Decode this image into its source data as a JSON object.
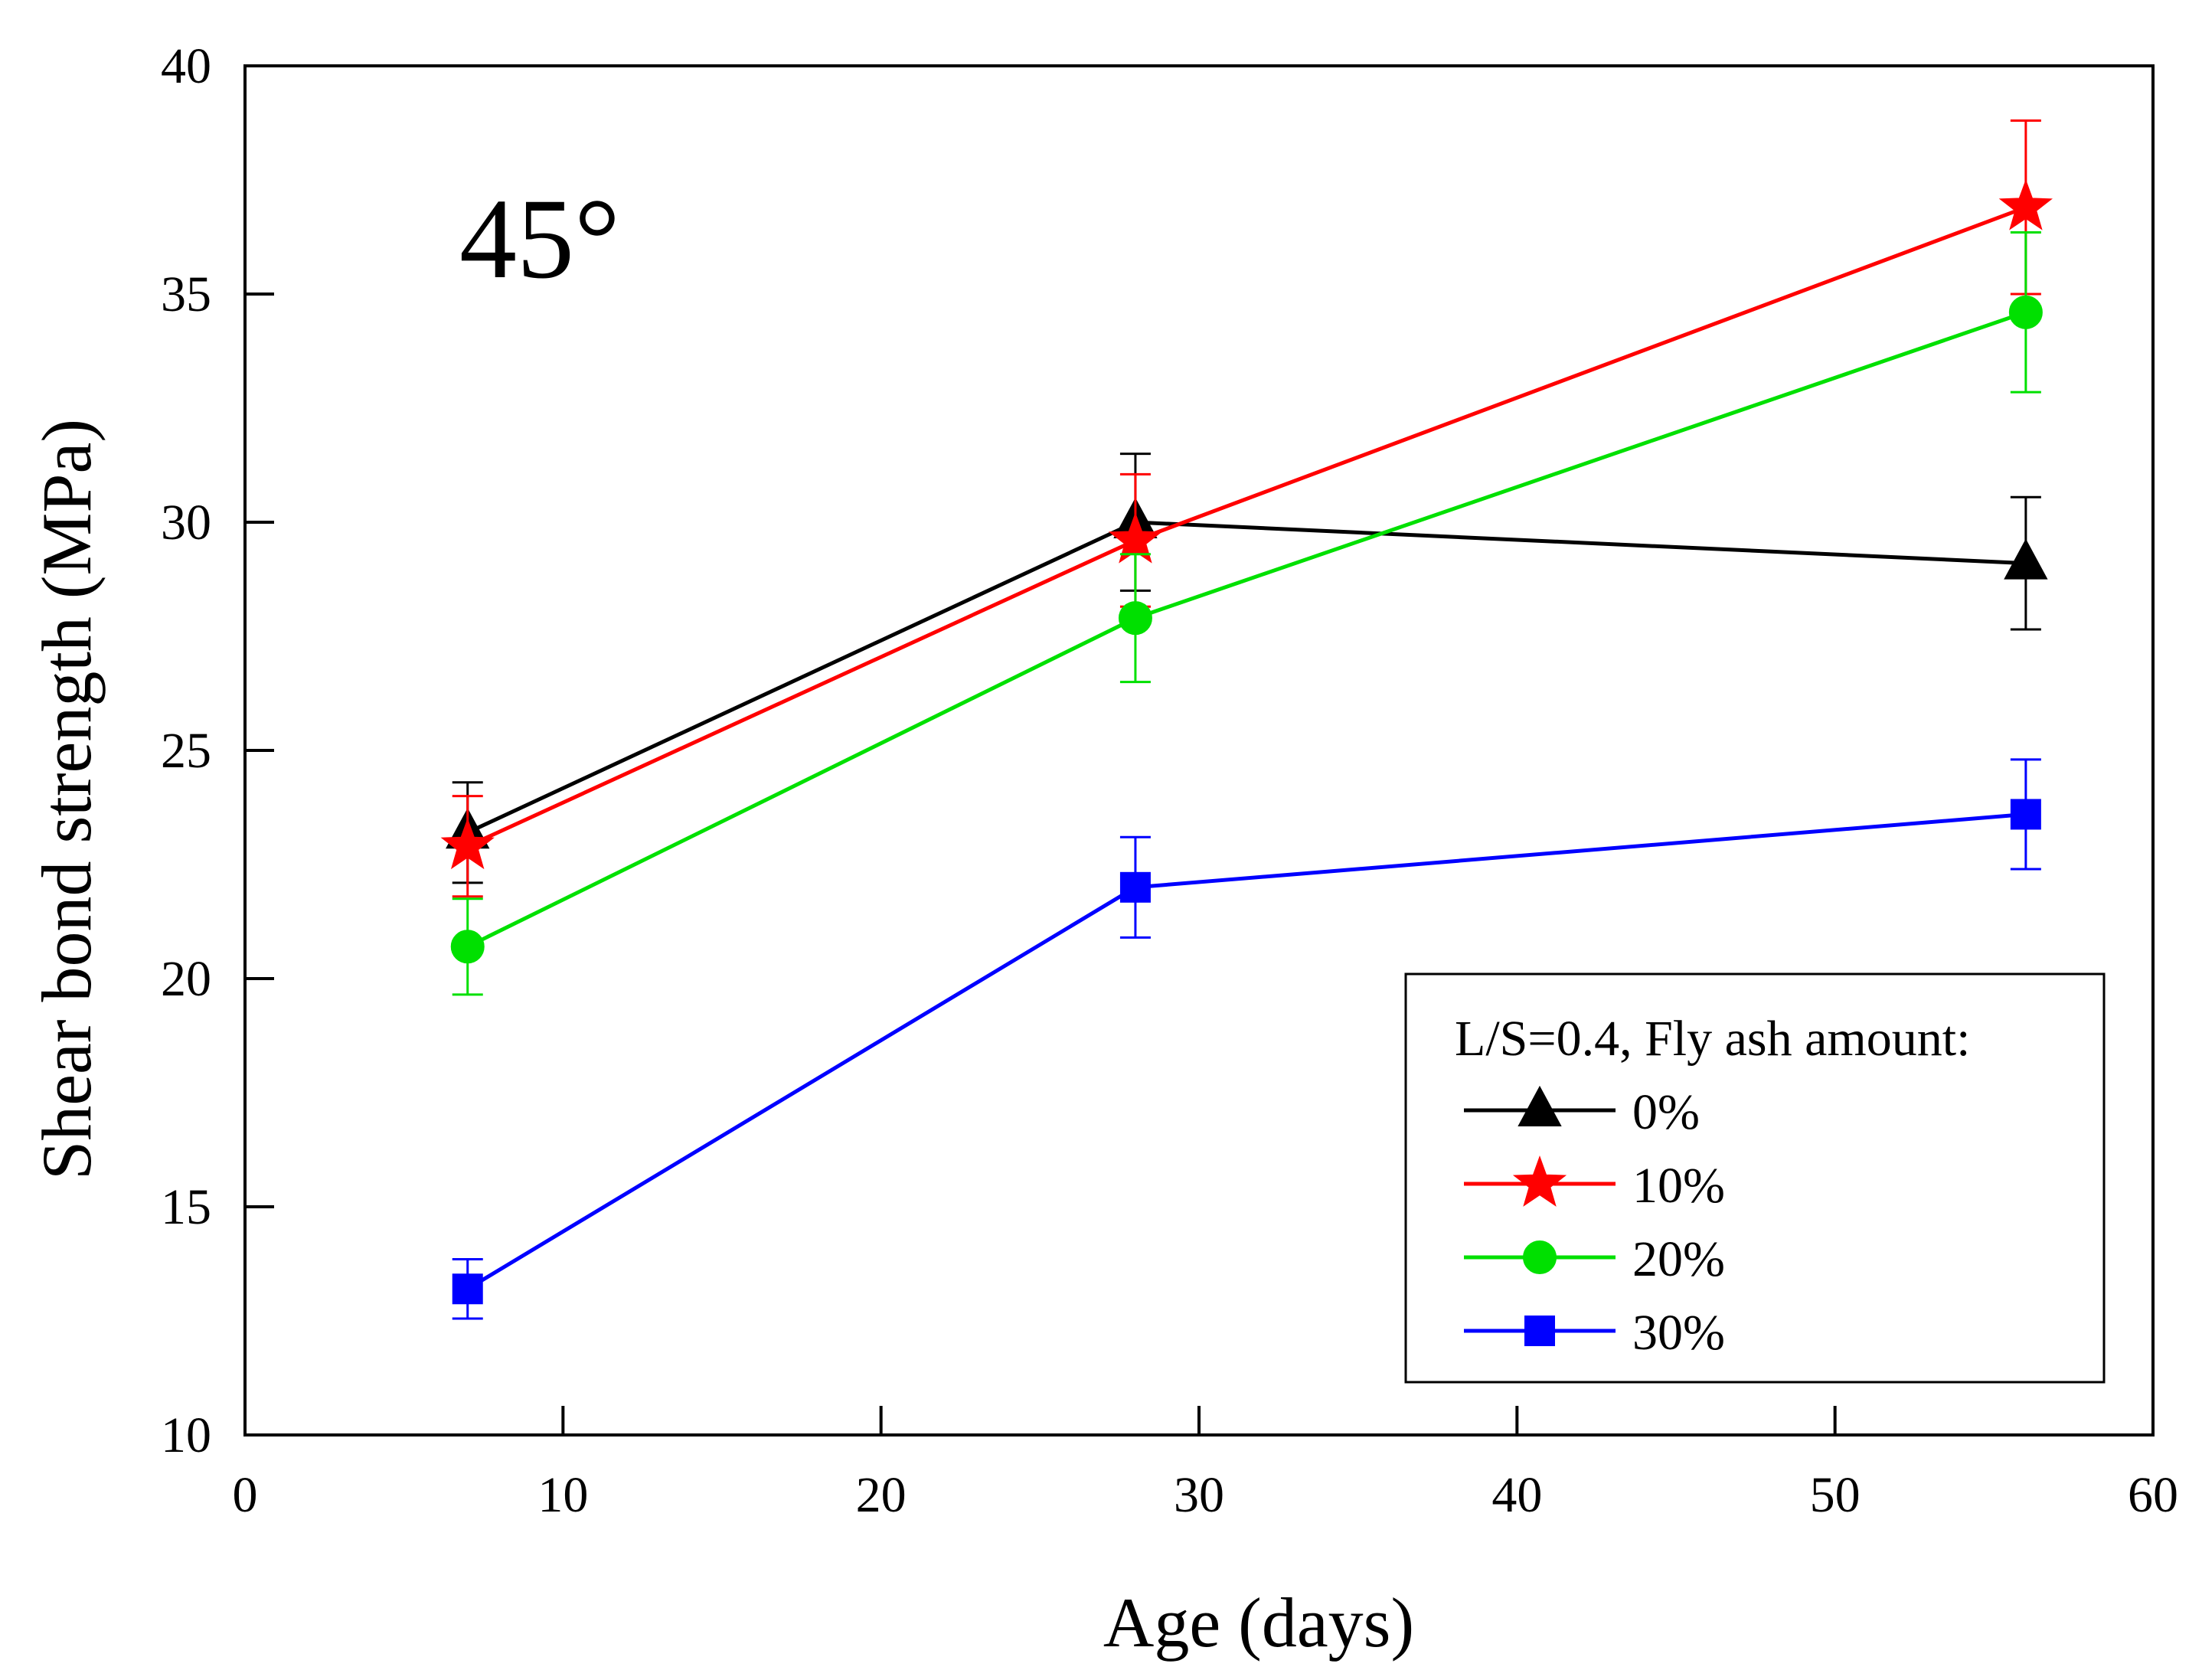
{
  "chart_data": {
    "type": "line",
    "annotation": "45°",
    "xlabel": "Age (days)",
    "ylabel": "Shear bond strength (MPa)",
    "xlim": [
      0,
      60
    ],
    "ylim": [
      10,
      40
    ],
    "xticks": [
      0,
      10,
      20,
      30,
      40,
      50,
      60
    ],
    "yticks": [
      10,
      15,
      20,
      25,
      30,
      35,
      40
    ],
    "x": [
      7,
      28,
      56
    ],
    "legend": {
      "title": "L/S=0.4, Fly ash amount:",
      "position": "bottom-right"
    },
    "series": [
      {
        "name": "0%",
        "color": "#000000",
        "marker": "triangle",
        "values": [
          23.2,
          30.0,
          29.1
        ],
        "errors": [
          1.1,
          1.5,
          1.45
        ]
      },
      {
        "name": "10%",
        "color": "#ff0000",
        "marker": "star",
        "values": [
          22.9,
          29.6,
          36.9
        ],
        "errors": [
          1.1,
          1.45,
          1.9
        ]
      },
      {
        "name": "20%",
        "color": "#00e000",
        "marker": "circle",
        "values": [
          20.7,
          27.9,
          34.6
        ],
        "errors": [
          1.05,
          1.4,
          1.75
        ]
      },
      {
        "name": "30%",
        "color": "#0000ff",
        "marker": "square",
        "values": [
          13.2,
          22.0,
          23.6
        ],
        "errors": [
          0.65,
          1.1,
          1.2
        ]
      }
    ]
  }
}
